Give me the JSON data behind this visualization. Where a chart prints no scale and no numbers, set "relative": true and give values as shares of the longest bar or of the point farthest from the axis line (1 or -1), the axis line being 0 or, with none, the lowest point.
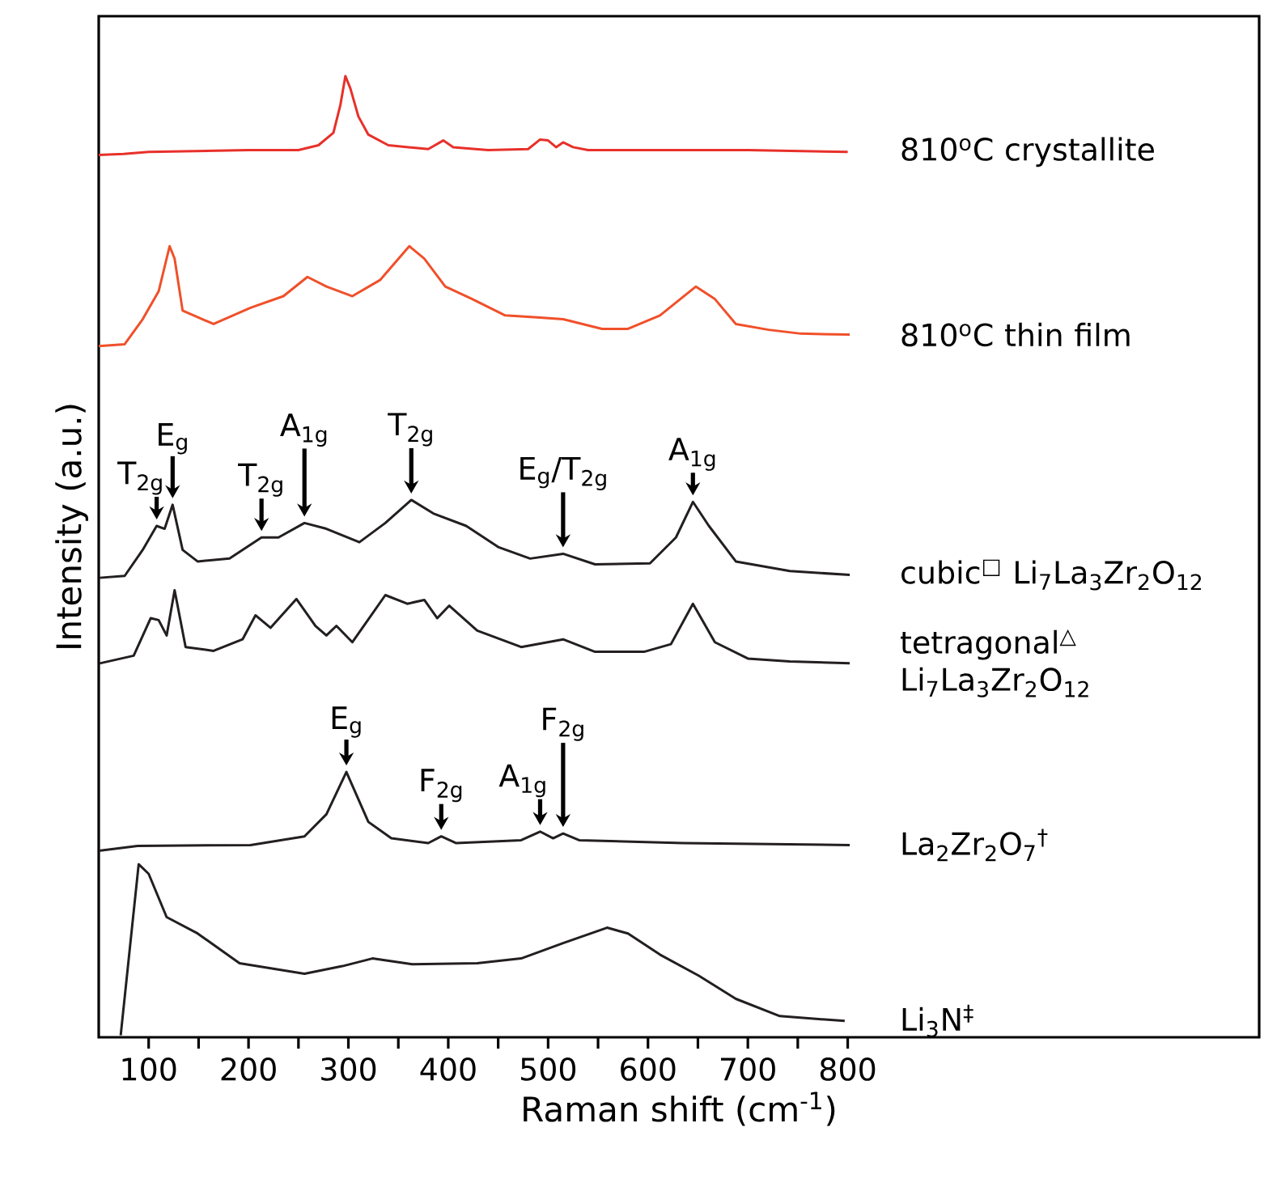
{
  "chart_data": {
    "type": "line",
    "relative": true,
    "xlabel": "Raman shift (cm$^{-1}$)",
    "ylabel": "Intensity (a.u.)",
    "xlim": [
      50,
      1212
    ],
    "xticks": [
      100,
      {
        "value": 150,
        "label": null
      },
      200,
      {
        "value": 250,
        "label": null
      },
      300,
      {
        "value": 350,
        "label": null
      },
      400,
      {
        "value": 450,
        "label": null
      },
      500,
      {
        "value": 550,
        "label": null
      },
      600,
      {
        "value": 650,
        "label": null
      },
      700,
      {
        "value": 750,
        "label": null
      },
      800
    ],
    "legend": false,
    "series": [
      {
        "name": "810$^{o}$C crystallite",
        "color": "#e8302a",
        "x": [
          50,
          75,
          100,
          200,
          250,
          270,
          285,
          292,
          297,
          302,
          310,
          320,
          340,
          380,
          395,
          405,
          440,
          480,
          492,
          500,
          508,
          515,
          525,
          540,
          600,
          700,
          800
        ],
        "values": [
          0.918,
          0.919,
          0.921,
          0.923,
          0.923,
          0.928,
          0.941,
          0.97,
          1.0,
          0.987,
          0.958,
          0.939,
          0.928,
          0.924,
          0.933,
          0.926,
          0.923,
          0.924,
          0.934,
          0.933,
          0.926,
          0.931,
          0.926,
          0.923,
          0.923,
          0.923,
          0.921
        ]
      },
      {
        "name": "810$^{o}$C thin film",
        "color": "#f0502a",
        "x": [
          50,
          76,
          94,
          110,
          121,
          126,
          134,
          165,
          202,
          235,
          259,
          278,
          304,
          332,
          361,
          376,
          397,
          424,
          457,
          489,
          515,
          554,
          580,
          612,
          648,
          667,
          688,
          721,
          753,
          802
        ],
        "values": [
          0.719,
          0.721,
          0.747,
          0.776,
          0.823,
          0.81,
          0.756,
          0.742,
          0.759,
          0.771,
          0.791,
          0.781,
          0.771,
          0.788,
          0.823,
          0.81,
          0.781,
          0.768,
          0.751,
          0.749,
          0.747,
          0.737,
          0.737,
          0.751,
          0.781,
          0.768,
          0.742,
          0.736,
          0.732,
          0.731
        ]
      },
      {
        "name": "cubic$^{□}$ Li$_{7}$La$_{3}$Zr$_{2}$O$_{12}$",
        "color": "#231f20",
        "x": [
          51,
          76,
          94,
          108,
          116,
          124,
          134,
          149,
          181,
          213,
          230,
          256,
          278,
          311,
          337,
          363,
          385,
          418,
          450,
          482,
          515,
          547,
          602,
          628,
          645,
          661,
          688,
          742,
          802
        ],
        "values": [
          0.478,
          0.48,
          0.507,
          0.532,
          0.529,
          0.554,
          0.507,
          0.495,
          0.498,
          0.52,
          0.52,
          0.535,
          0.529,
          0.515,
          0.535,
          0.559,
          0.545,
          0.532,
          0.51,
          0.498,
          0.503,
          0.492,
          0.493,
          0.52,
          0.557,
          0.532,
          0.495,
          0.485,
          0.481
        ]
      },
      {
        "name": "tetragonal$^{△}$ Li$_{7}$La$_{3}$Zr$_{2}$O$_{12}$",
        "color": "#231f20",
        "x": [
          51,
          85,
          102,
          110,
          118,
          126,
          137,
          165,
          194,
          207,
          222,
          248,
          267,
          278,
          288,
          304,
          337,
          359,
          376,
          389,
          401,
          429,
          473,
          515,
          547,
          596,
          623,
          645,
          667,
          700,
          742,
          802
        ],
        "values": [
          0.389,
          0.397,
          0.436,
          0.434,
          0.418,
          0.465,
          0.406,
          0.402,
          0.414,
          0.439,
          0.426,
          0.456,
          0.428,
          0.418,
          0.428,
          0.411,
          0.46,
          0.451,
          0.455,
          0.436,
          0.449,
          0.423,
          0.406,
          0.414,
          0.401,
          0.401,
          0.409,
          0.451,
          0.411,
          0.394,
          0.391,
          0.389
        ]
      },
      {
        "name": "La$_{2}$Zr$_{2}$O$_{7}$$^{†}$",
        "color": "#231f20",
        "x": [
          50,
          89,
          202,
          256,
          278,
          298,
          320,
          343,
          380,
          393,
          408,
          473,
          492,
          505,
          515,
          531,
          635,
          802
        ],
        "values": [
          0.194,
          0.199,
          0.2,
          0.209,
          0.232,
          0.276,
          0.224,
          0.207,
          0.202,
          0.209,
          0.202,
          0.205,
          0.214,
          0.207,
          0.212,
          0.205,
          0.202,
          0.2
        ]
      },
      {
        "name": "Li$_{3}$N$^{‡}$",
        "color": "#231f20",
        "x": [
          72,
          81,
          90,
          100,
          118,
          149,
          191,
          256,
          294,
          324,
          364,
          429,
          473,
          515,
          559,
          580,
          612,
          651,
          688,
          732,
          797
        ],
        "values": [
          0.002,
          0.091,
          0.18,
          0.17,
          0.125,
          0.108,
          0.077,
          0.066,
          0.074,
          0.082,
          0.076,
          0.077,
          0.082,
          0.098,
          0.114,
          0.108,
          0.086,
          0.064,
          0.04,
          0.022,
          0.017
        ]
      }
    ],
    "annotations": [
      {
        "text": "T$_{2g}$",
        "x": 108,
        "y": 0.532
      },
      {
        "text": "E$_{g}$",
        "x": 124,
        "y": 0.554
      },
      {
        "text": "T$_{2g}$",
        "x": 213,
        "y": 0.52
      },
      {
        "text": "A$_{1g}$",
        "x": 256,
        "y": 0.535
      },
      {
        "text": "T$_{2g}$",
        "x": 363,
        "y": 0.559
      },
      {
        "text": "E$_{g}$/T$_{2g}$",
        "x": 515,
        "y": 0.503
      },
      {
        "text": "A$_{1g}$",
        "x": 645,
        "y": 0.557
      },
      {
        "text": "E$_{g}$",
        "x": 298,
        "y": 0.276
      },
      {
        "text": "F$_{2g}$",
        "x": 393,
        "y": 0.209
      },
      {
        "text": "A$_{1g}$",
        "x": 492,
        "y": 0.214
      },
      {
        "text": "F$_{2g}$",
        "x": 515,
        "y": 0.212
      }
    ]
  }
}
